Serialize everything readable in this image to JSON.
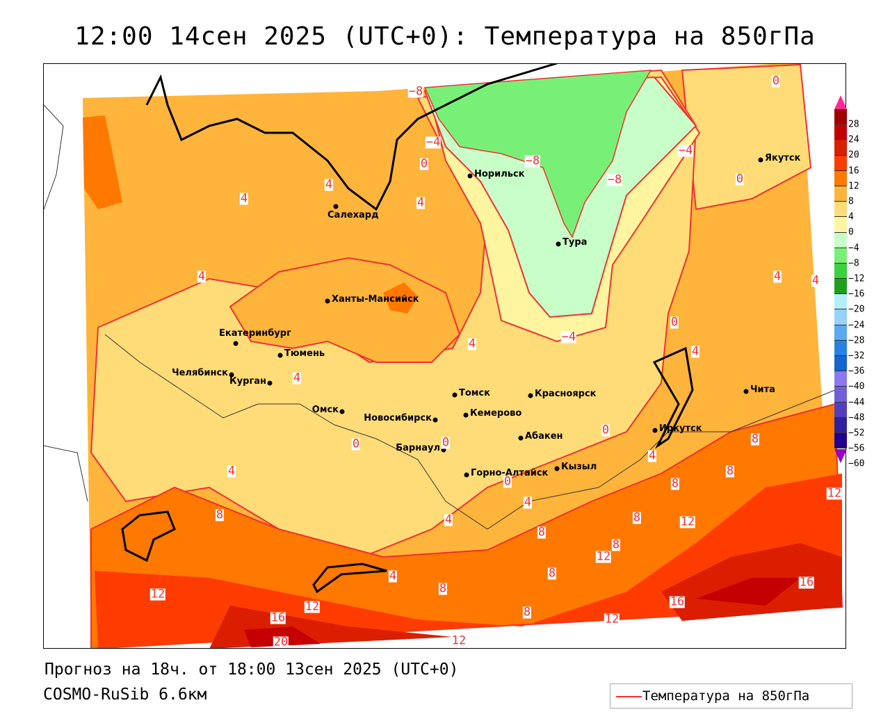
{
  "title": "12:00 14сен 2025 (UTC+0): Температура на 850гПа",
  "forecast_line": "Прогноз на 18ч. от 18:00 13сен 2025 (UTC+0)",
  "model_line": "COSMO-RuSib 6.6км",
  "legend": {
    "label": "Температура на 850гПа",
    "line_color": "#f03030"
  },
  "colorbar": {
    "ticks": [
      "28",
      "24",
      "20",
      "16",
      "12",
      "8",
      "4",
      "0",
      "−4",
      "−8",
      "−12",
      "−16",
      "−20",
      "−24",
      "−28",
      "−32",
      "−36",
      "−40",
      "−44",
      "−48",
      "−52",
      "−56",
      "−60"
    ],
    "colors": [
      "#a00000",
      "#c40000",
      "#dc1e00",
      "#ff3c00",
      "#ff7800",
      "#ffb43c",
      "#ffdc78",
      "#fff5a0",
      "#c8ffc8",
      "#78f078",
      "#3cd23c",
      "#1ea01e",
      "#b4f0fa",
      "#96d2fa",
      "#5aaaf0",
      "#2882e6",
      "#1464d2",
      "#8c78f0",
      "#7060d8",
      "#5040c0",
      "#3020a0",
      "#200090"
    ],
    "top_arrow_color": "#ff2896",
    "bottom_arrow_color": "#9600c8"
  },
  "map": {
    "cities": [
      "Норильск",
      "Салехард",
      "Тура",
      "Ханты-Мансийск",
      "Екатеринбург",
      "Тюмень",
      "Челябинск",
      "Курган",
      "Омск",
      "Новосибирск",
      "Томск",
      "Кемерово",
      "Красноярск",
      "Абакен",
      "Барнаул",
      "Горно-Алтайск",
      "Кызыл",
      "Иркутск",
      "Чита",
      "Якутск"
    ],
    "contour_labels": [
      "-8",
      "-4",
      "0",
      "-8",
      "-8",
      "-4",
      "0",
      "0",
      "4",
      "4",
      "4",
      "4",
      "4",
      "4",
      "0",
      "-4",
      "4",
      "4",
      "4",
      "0",
      "0",
      "0",
      "4",
      "8",
      "8",
      "4",
      "0",
      "8",
      "4",
      "12",
      "8",
      "4",
      "8",
      "12",
      "8",
      "8",
      "12",
      "8",
      "4",
      "8",
      "12",
      "16",
      "12",
      "16",
      "16",
      "8",
      "12",
      "12",
      "20"
    ]
  }
}
